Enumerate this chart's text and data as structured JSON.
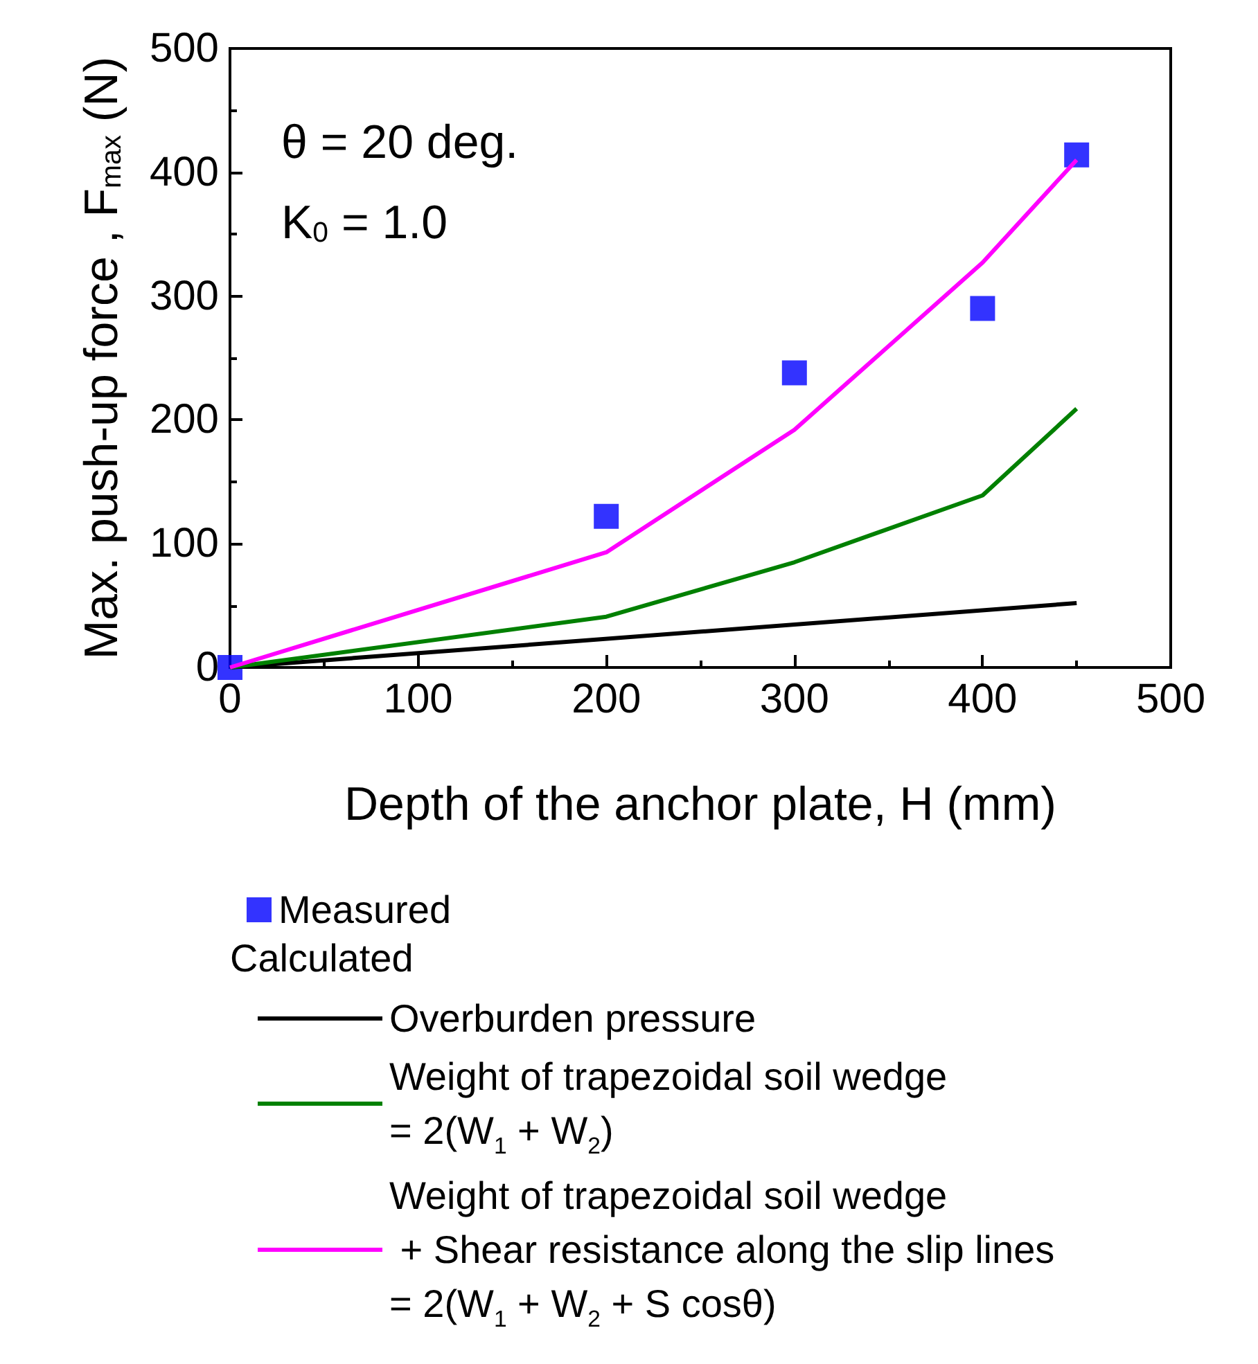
{
  "chart_data": {
    "type": "line",
    "xlabel": "Depth of the anchor plate, H (mm)",
    "ylabel": "Max. push-up force , F$_{max}$ (N)",
    "xlim": [
      0,
      500
    ],
    "xticks": [
      0,
      100,
      200,
      300,
      400,
      500
    ],
    "ylim": [
      0,
      500
    ],
    "yticks": [
      0,
      100,
      200,
      300,
      400,
      500
    ],
    "grid": false,
    "legend": "bottom",
    "legend_title": "Calculated",
    "annotations": [
      "θ = 20 deg.",
      "K$_{0}$ = 1.0"
    ],
    "series": [
      {
        "name": "Measured",
        "type": "scatter",
        "marker": "square",
        "color": "#0000ff",
        "x": [
          0,
          200,
          300,
          400,
          450
        ],
        "values": [
          0,
          122,
          238,
          290,
          414
        ]
      },
      {
        "name": "Overburden pressure",
        "marker": "none",
        "color": "#000000",
        "x": [
          0,
          450
        ],
        "values": [
          0,
          52
        ]
      },
      {
        "name": "Weight of trapezoidal soil wedge\n= 2(W$_{1}$ + W$_{2}$)",
        "marker": "none",
        "color": "#008000",
        "x": [
          0,
          200,
          300,
          400,
          450
        ],
        "values": [
          0,
          41,
          85,
          139,
          209
        ]
      },
      {
        "name": "Weight of trapezoidal soil wedge\n + Shear resistance along the slip lines\n= 2(W$_{1}$ + W$_{2}$ + S cosθ)",
        "marker": "none",
        "color": "#ff00ff",
        "x": [
          0,
          200,
          300,
          400,
          450
        ],
        "values": [
          0,
          93,
          192,
          327,
          410
        ]
      }
    ]
  }
}
